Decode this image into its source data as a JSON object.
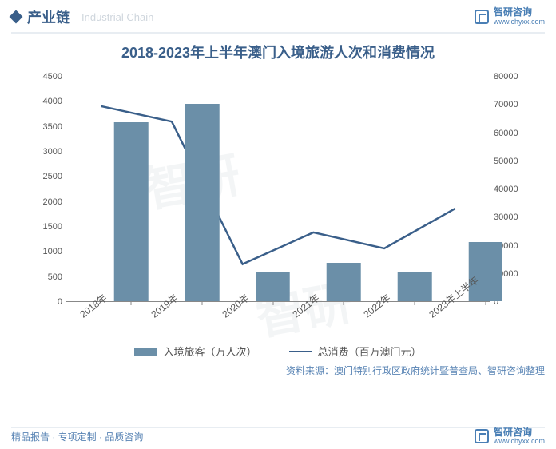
{
  "header": {
    "section_label": "产业链",
    "subtitle_en": "Industrial Chain",
    "logo_cn": "智研咨询",
    "logo_url": "www.chyxx.com"
  },
  "chart": {
    "type": "bar+line",
    "title": "2018-2023年上半年澳门入境旅游人次和消费情况",
    "title_color": "#3a5f8a",
    "title_fontsize": 18,
    "categories": [
      "2018年",
      "2019年",
      "2020年",
      "2021年",
      "2022年",
      "2023年上半年"
    ],
    "bar_series": {
      "label": "入境旅客（万人次）",
      "values": [
        3580,
        3940,
        590,
        770,
        570,
        1180
      ],
      "color": "#6b8fa8",
      "bar_width_pct": 7
    },
    "line_series": {
      "label": "总消费（百万澳门元）",
      "values": [
        69500,
        64000,
        13200,
        24500,
        18800,
        33000
      ],
      "color": "#3a5f8a",
      "line_width": 2.5
    },
    "y_left": {
      "min": 0,
      "max": 4500,
      "step": 500
    },
    "y_right": {
      "min": 0,
      "max": 80000,
      "step": 10000
    },
    "background": "#ffffff",
    "axis_color": "#888888",
    "label_fontsize": 12
  },
  "legend": {
    "bar_label": "入境旅客（万人次）",
    "line_label": "总消费（百万澳门元）"
  },
  "source": "资料来源：澳门特别行政区政府统计暨普查局、智研咨询整理",
  "footer": {
    "left": "精品报告 · 专项定制 · 品质咨询"
  },
  "watermark": "智研"
}
